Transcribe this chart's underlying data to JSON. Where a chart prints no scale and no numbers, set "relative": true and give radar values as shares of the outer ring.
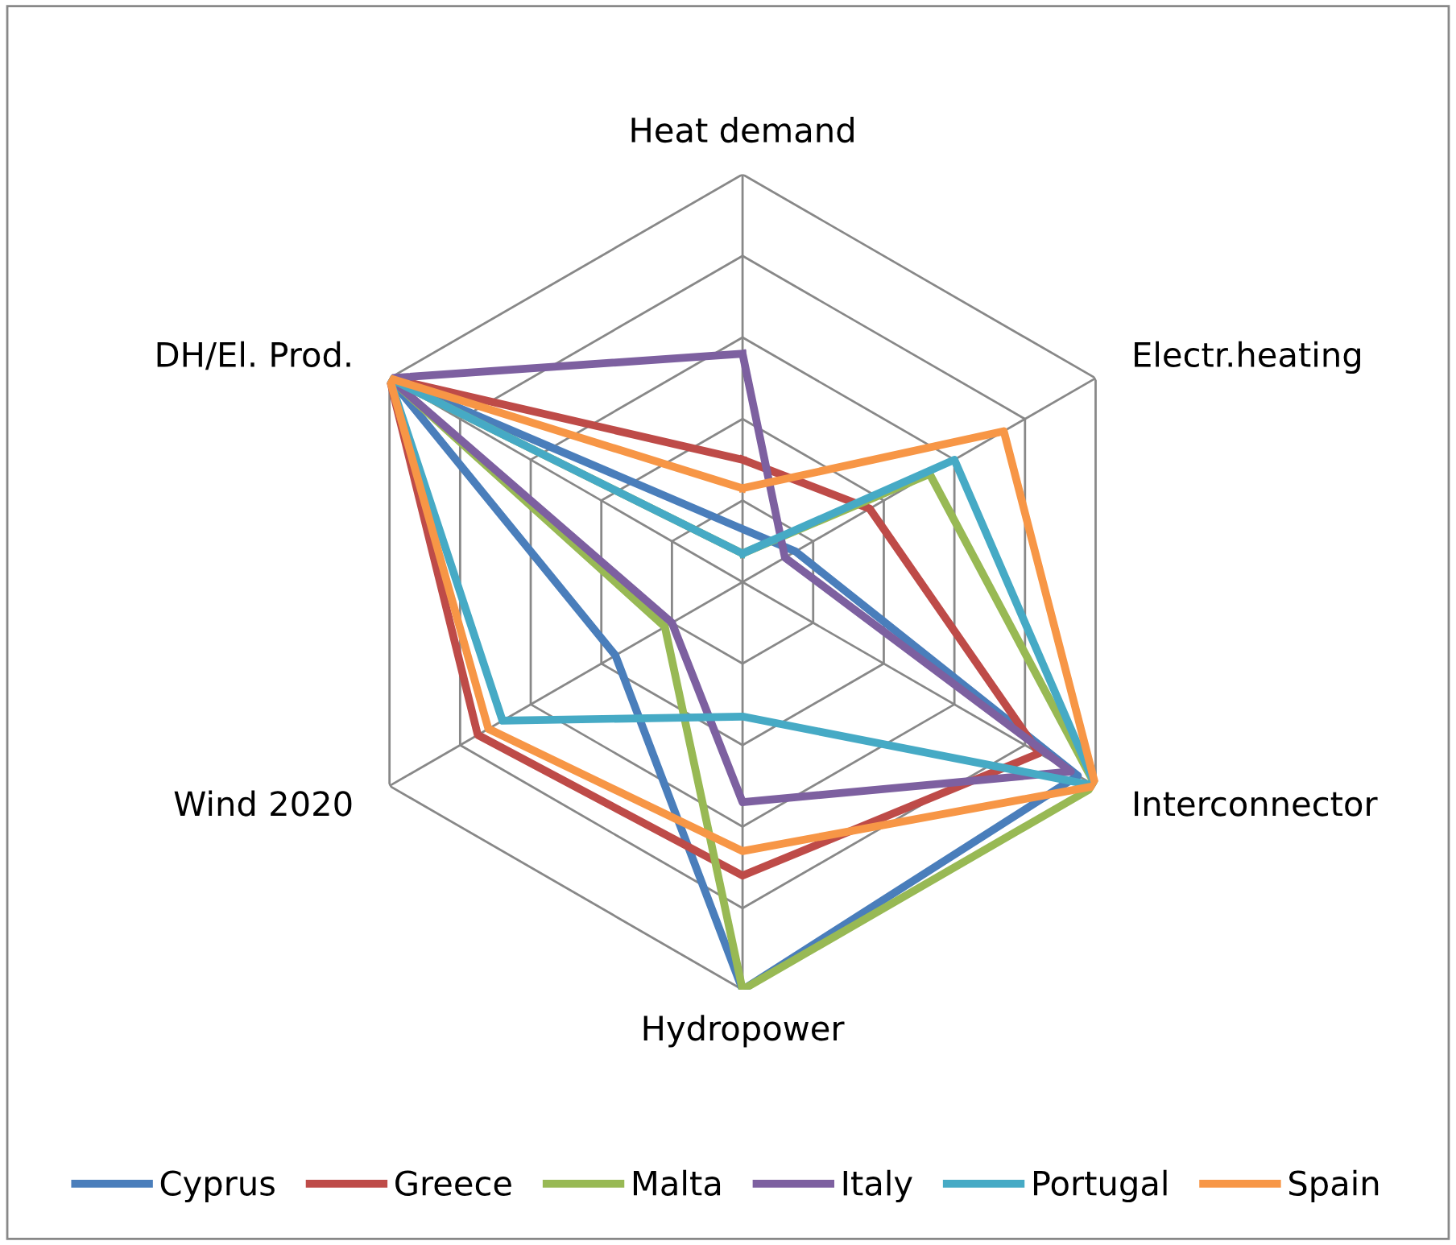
{
  "chart_data": {
    "type": "radar",
    "relative": true,
    "grid": true,
    "legend": "bottom",
    "marker": "none",
    "line_style": "solid",
    "categories": [
      "Heat demand",
      "Electr.heating",
      "Interconnector",
      "Hydropower",
      "Wind 2020",
      "DH/El. Prod."
    ],
    "series": [
      {
        "name": "Cyprus",
        "color": "#4a7ebb",
        "values": [
          0.13,
          0.15,
          0.95,
          1,
          0.36,
          1
        ]
      },
      {
        "name": "Greece",
        "color": "#be4b48",
        "values": [
          0.3,
          0.36,
          0.84,
          0.72,
          0.75,
          1
        ]
      },
      {
        "name": "Malta",
        "color": "#98b954",
        "values": [
          0.07,
          0.53,
          1,
          1,
          0.22,
          1
        ]
      },
      {
        "name": "Italy",
        "color": "#7d60a0",
        "values": [
          0.56,
          0.12,
          0.93,
          0.54,
          0.2,
          1
        ]
      },
      {
        "name": "Portugal",
        "color": "#46aac5",
        "values": [
          0.07,
          0.6,
          1,
          0.33,
          0.68,
          1
        ]
      },
      {
        "name": "Spain",
        "color": "#f79646",
        "values": [
          0.23,
          0.74,
          1,
          0.66,
          0.72,
          1
        ]
      }
    ]
  }
}
